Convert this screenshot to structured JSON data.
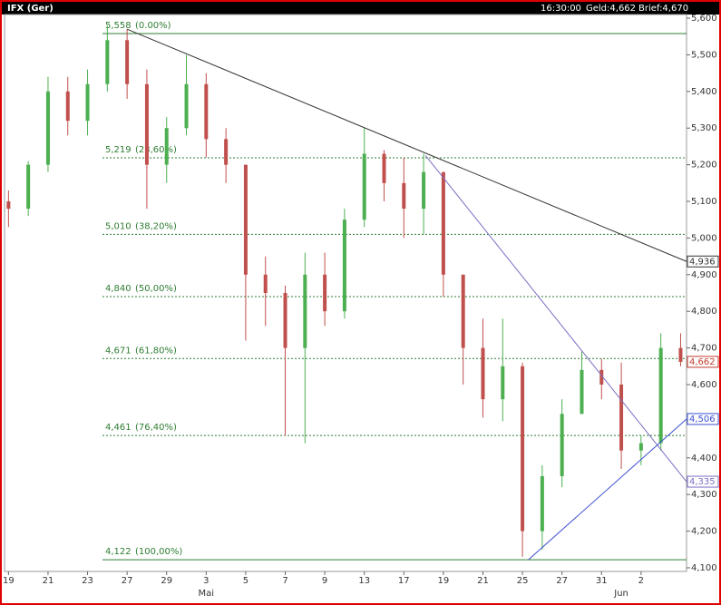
{
  "chart_data": {
    "type": "candlestick",
    "header": {
      "title": "IFX (Ger)",
      "time": "16:30:00",
      "bid": "Geld:4,662",
      "ask": "Brief:4,670"
    },
    "categories": [
      "19",
      null,
      "21",
      null,
      "23",
      null,
      "27",
      null,
      "29",
      null,
      "3",
      null,
      "5",
      null,
      "7",
      null,
      "9",
      null,
      "13",
      null,
      "17",
      null,
      "19",
      null,
      "21",
      null,
      "25",
      null,
      "27",
      null,
      "31",
      null,
      "2",
      null,
      null
    ],
    "month_categories": [
      null,
      null,
      null,
      null,
      null,
      null,
      null,
      null,
      null,
      null,
      "Mai",
      null,
      null,
      null,
      null,
      null,
      null,
      null,
      null,
      null,
      null,
      null,
      null,
      null,
      null,
      null,
      null,
      null,
      null,
      null,
      null,
      "Jun",
      null,
      null,
      null
    ],
    "open": [
      5100,
      5080,
      5200,
      5400,
      5320,
      5420,
      5540,
      5420,
      5200,
      5300,
      5420,
      5270,
      5200,
      4900,
      4850,
      4700,
      4900,
      4800,
      5050,
      5230,
      5150,
      5080,
      5180,
      4900,
      4700,
      4560,
      4650,
      4200,
      4350,
      4520,
      4640,
      4600,
      4420,
      4440,
      4700
    ],
    "high": [
      5130,
      5210,
      5440,
      5440,
      5460,
      5580,
      5570,
      5460,
      5330,
      5500,
      5450,
      5300,
      5200,
      4950,
      4870,
      4960,
      4960,
      5080,
      5300,
      5240,
      5220,
      5230,
      5180,
      4900,
      4780,
      4780,
      4660,
      4380,
      4560,
      4690,
      4670,
      4660,
      4460,
      4740,
      4740
    ],
    "low": [
      5030,
      5060,
      5180,
      5280,
      5280,
      5400,
      5380,
      5080,
      5150,
      5280,
      5220,
      5150,
      4720,
      4760,
      4460,
      4440,
      4760,
      4780,
      5030,
      5100,
      5000,
      5010,
      4840,
      4600,
      4510,
      4500,
      4130,
      4150,
      4320,
      4520,
      4560,
      4370,
      4380,
      4420,
      4650
    ],
    "close": [
      5080,
      5200,
      5400,
      5320,
      5420,
      5540,
      5420,
      5200,
      5300,
      5420,
      5270,
      5200,
      4900,
      4850,
      4700,
      4900,
      4800,
      5050,
      5230,
      5150,
      5080,
      5180,
      4900,
      4700,
      4560,
      4650,
      4200,
      4350,
      4520,
      4640,
      4600,
      4420,
      4440,
      4700,
      4662
    ],
    "up_color": "#4caf50",
    "down_color": "#c0504d",
    "xlim": [
      -0.2,
      34.3
    ],
    "ylim": [
      4090,
      5610
    ],
    "yticks": [
      {
        "value": 4100,
        "label": "4,100"
      },
      {
        "value": 4200,
        "label": "4,200"
      },
      {
        "value": 4300,
        "label": "4,300"
      },
      {
        "value": 4400,
        "label": "4,400"
      },
      {
        "value": 4500,
        "label": "4,500"
      },
      {
        "value": 4600,
        "label": "4,600"
      },
      {
        "value": 4700,
        "label": "4,700"
      },
      {
        "value": 4800,
        "label": "4,800"
      },
      {
        "value": 4900,
        "label": "4,900"
      },
      {
        "value": 5000,
        "label": "5,000"
      },
      {
        "value": 5100,
        "label": "5,100"
      },
      {
        "value": 5200,
        "label": "5,200"
      },
      {
        "value": 5300,
        "label": "5,300"
      },
      {
        "value": 5400,
        "label": "5,400"
      },
      {
        "value": 5500,
        "label": "5,500"
      },
      {
        "value": 5600,
        "label": "5,600"
      }
    ],
    "fib_color": "#2e7d32",
    "fib_levels": [
      {
        "value": 5558,
        "label": "5,558",
        "pct": "(0.00%)"
      },
      {
        "value": 5219,
        "label": "5,219",
        "pct": "(23,60%)"
      },
      {
        "value": 5010,
        "label": "5,010",
        "pct": "(38,20%)"
      },
      {
        "value": 4840,
        "label": "4,840",
        "pct": "(50,00%)"
      },
      {
        "value": 4671,
        "label": "4,671",
        "pct": "(61,80%)"
      },
      {
        "value": 4461,
        "label": "4,461",
        "pct": "(76,40%)"
      },
      {
        "value": 4122,
        "label": "4,122",
        "pct": "(100,00%)"
      }
    ],
    "trendlines": [
      {
        "color": "#333333",
        "x": [
          6,
          34.3
        ],
        "values": [
          5570,
          4936
        ],
        "end_label": "4,936"
      },
      {
        "color": "#7b6fc4",
        "x": [
          21.1,
          34.3
        ],
        "values": [
          5225,
          4335
        ],
        "end_label": "4,335"
      },
      {
        "color": "#3a4fd0",
        "x": [
          26.3,
          34.3
        ],
        "values": [
          4122,
          4506
        ],
        "end_label": "4,506"
      }
    ],
    "last": {
      "value": 4662,
      "label": "4,662",
      "color": "#c0392b"
    }
  }
}
